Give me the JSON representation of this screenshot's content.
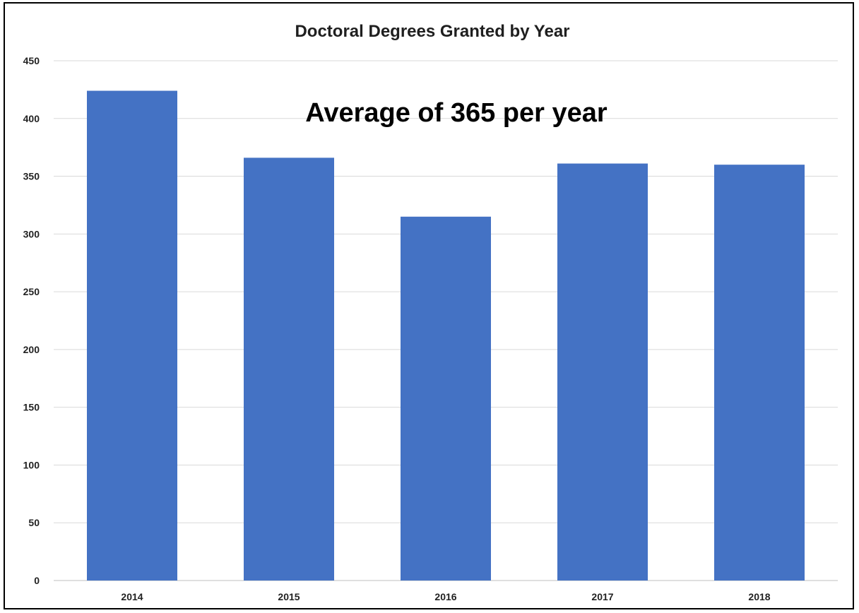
{
  "chart_data": {
    "type": "bar",
    "title": "Doctoral Degrees Granted by Year",
    "annotation": "Average of 365 per year",
    "categories": [
      "2014",
      "2015",
      "2016",
      "2017",
      "2018"
    ],
    "values": [
      424,
      366,
      315,
      361,
      360
    ],
    "xlabel": "",
    "ylabel": "",
    "ylim": [
      0,
      450
    ],
    "yticks": [
      "0",
      "50",
      "100",
      "150",
      "200",
      "250",
      "300",
      "350",
      "400",
      "450"
    ],
    "grid": true,
    "legend": "none",
    "bar_color": "#4472C4"
  }
}
